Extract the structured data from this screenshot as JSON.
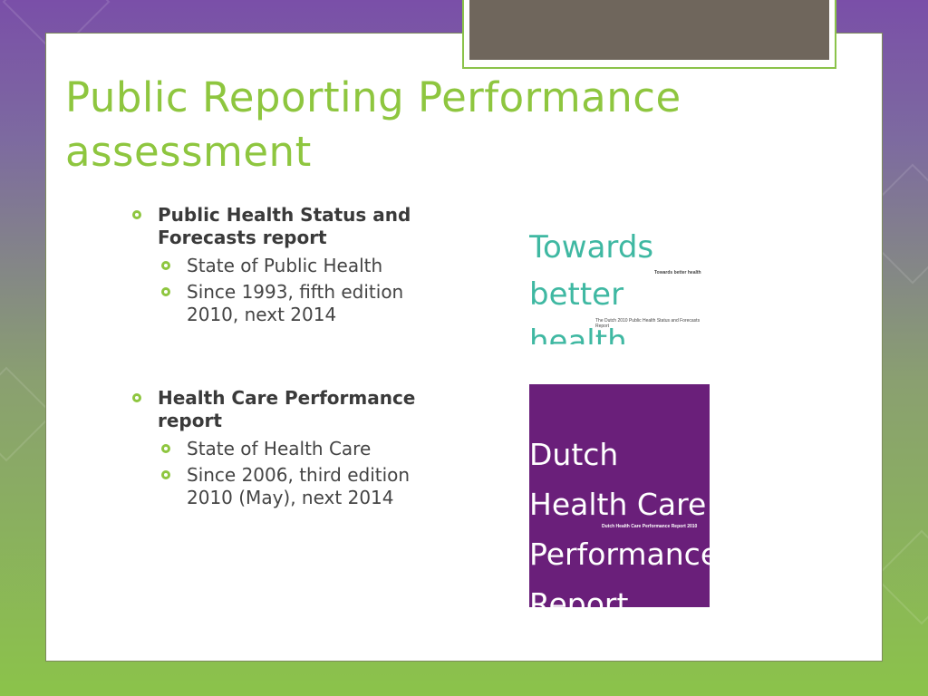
{
  "title": {
    "line1": "Public Reporting Performance",
    "line2": "assessment"
  },
  "sections": [
    {
      "heading_line1": "Public Health Status and",
      "heading_line2": "Forecasts report",
      "items": [
        {
          "line1": "State of Public Health",
          "line2": ""
        },
        {
          "line1": "Since 1993, fifth edition",
          "line2": "2010, next 2014"
        }
      ]
    },
    {
      "heading_line1": "Health Care Performance",
      "heading_line2": "report",
      "items": [
        {
          "line1": "State of Health Care",
          "line2": ""
        },
        {
          "line1": "Since 2006, third edition",
          "line2": "2010 (May), next 2014"
        }
      ]
    }
  ],
  "cover_public_health": {
    "line1": "Towards",
    "line2": "better",
    "line3": "health",
    "small_title": "Towards better health",
    "small_subtitle": "The Dutch 2010 Public Health Status and Forecasts Report",
    "color": "#3fb8a2"
  },
  "cover_health_care": {
    "line1": "Dutch",
    "line2": "Health Care",
    "line3": "Performance",
    "line4": "Report",
    "small_title": "Dutch Health Care Performance Report 2010",
    "color": "#6a1f7a"
  },
  "theme": {
    "accent": "#8ec63f",
    "frame": "#6f665c"
  }
}
